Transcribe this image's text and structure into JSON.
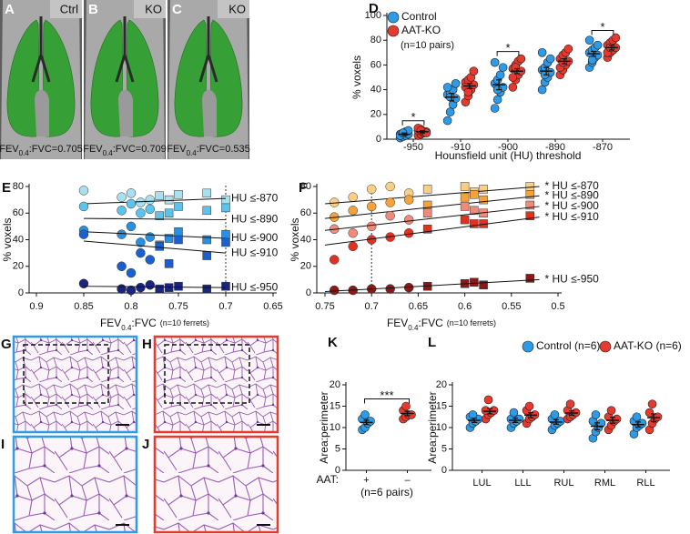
{
  "images": [
    {
      "panel": "A",
      "label": "Ctrl",
      "caption": [
        "FEV",
        "0.4",
        ":FVC=0.705"
      ]
    },
    {
      "panel": "B",
      "label": "KO",
      "caption": [
        "FEV",
        "0.4",
        ":FVC=0.709"
      ]
    },
    {
      "panel": "C",
      "label": "KO",
      "caption": [
        "FEV",
        "0.4",
        ":FVC=0.535"
      ]
    }
  ],
  "histology": [
    {
      "panel": "G"
    },
    {
      "panel": "H"
    },
    {
      "panel": "I"
    },
    {
      "panel": "J"
    }
  ],
  "chart_data": [
    {
      "type": "strip",
      "panel": "D",
      "ylabel": "% voxels",
      "xlabel": "Hounsfield unit (HU) threshold",
      "categories": [
        "-950",
        "-910",
        "-900",
        "-890",
        "-870"
      ],
      "ylim": [
        0,
        100
      ],
      "yticks": [
        0,
        20,
        40,
        60,
        80,
        100
      ],
      "legend_note": "(n=10 pairs)",
      "series": [
        {
          "name": "Control",
          "color": "#2e9be8",
          "values": [
            [
              1,
              2,
              3,
              4,
              4,
              5,
              6,
              7,
              3,
              5
            ],
            [
              15,
              22,
              28,
              33,
              36,
              38,
              40,
              45,
              42,
              34
            ],
            [
              25,
              32,
              38,
              42,
              45,
              48,
              52,
              58,
              62,
              40
            ],
            [
              40,
              46,
              50,
              54,
              56,
              58,
              62,
              65,
              70,
              52
            ],
            [
              58,
              62,
              66,
              68,
              70,
              72,
              74,
              76,
              80,
              64
            ]
          ],
          "means": [
            4,
            34,
            44,
            55,
            69
          ],
          "sem": [
            1,
            3,
            4,
            3,
            2
          ]
        },
        {
          "name": "AAT-KO",
          "color": "#e8392e",
          "values": [
            [
              3,
              4,
              5,
              6,
              7,
              8,
              6,
              5,
              9,
              7
            ],
            [
              30,
              35,
              40,
              44,
              46,
              48,
              50,
              55,
              42,
              38
            ],
            [
              42,
              48,
              52,
              55,
              57,
              60,
              63,
              65,
              50,
              58
            ],
            [
              52,
              56,
              60,
              63,
              65,
              68,
              70,
              73,
              58,
              62
            ],
            [
              66,
              70,
              72,
              74,
              76,
              78,
              80,
              82,
              70,
              74
            ]
          ],
          "means": [
            6,
            43,
            55,
            63,
            74
          ],
          "sem": [
            1,
            2,
            2,
            2,
            2
          ]
        }
      ],
      "significance": [
        {
          "label": "*",
          "span": [
            0,
            0
          ]
        },
        {
          "label": "*",
          "span": [
            2,
            2
          ]
        },
        {
          "label": "*",
          "span": [
            4,
            4
          ]
        }
      ]
    },
    {
      "type": "scatter",
      "panel": "E",
      "ylabel": "% voxels",
      "xlabel": {
        "main": "FEV",
        "sub": "0.4",
        "rest": ":FVC",
        "note": "(n=10 ferrets)"
      },
      "xlim": [
        0.9,
        0.65
      ],
      "xticks": [
        0.9,
        0.85,
        0.8,
        0.75,
        0.7,
        0.65
      ],
      "ylim": [
        0,
        80
      ],
      "yticks": [
        0,
        20,
        40,
        60,
        80
      ],
      "vline": 0.7,
      "x": [
        0.85,
        0.81,
        0.8,
        0.79,
        0.78,
        0.77,
        0.76,
        0.75,
        0.72,
        0.7
      ],
      "series": [
        {
          "name": "HU ≤-870",
          "color": "#a8e0f0",
          "values": [
            77,
            72,
            75,
            68,
            70,
            73,
            70,
            74,
            75,
            70
          ],
          "fit": {
            "x": [
              0.85,
              0.7
            ],
            "y": [
              67,
              71
            ]
          }
        },
        {
          "name": "HU ≤-890",
          "color": "#5cc4ec",
          "values": [
            65,
            62,
            67,
            60,
            63,
            58,
            60,
            65,
            62,
            64
          ],
          "fit": {
            "x": [
              0.85,
              0.7
            ],
            "y": [
              56,
              55
            ]
          }
        },
        {
          "name": "HU ≤-900",
          "color": "#2a8fe0",
          "values": [
            47,
            44,
            50,
            38,
            42,
            36,
            41,
            46,
            40,
            44
          ],
          "fit": {
            "x": [
              0.85,
              0.7
            ],
            "y": [
              46,
              41
            ]
          }
        },
        {
          "name": "HU ≤-910",
          "color": "#1a60d0",
          "values": [
            44,
            20,
            15,
            30,
            25,
            35,
            22,
            40,
            28,
            38
          ],
          "fit": {
            "x": [
              0.85,
              0.7
            ],
            "y": [
              39,
              30
            ]
          }
        },
        {
          "name": "HU ≤-950",
          "color": "#1a2580",
          "values": [
            7,
            3,
            2,
            4,
            6,
            3,
            4,
            5,
            3,
            5
          ],
          "fit": {
            "x": [
              0.85,
              0.7
            ],
            "y": [
              5,
              4
            ]
          }
        }
      ]
    },
    {
      "type": "scatter",
      "panel": "F",
      "ylabel": "% voxels",
      "xlabel": {
        "main": "FEV",
        "sub": "0.4",
        "rest": ":FVC",
        "note": "(n=10 ferrets)"
      },
      "xlim": [
        0.75,
        0.5
      ],
      "xticks": [
        0.75,
        0.7,
        0.65,
        0.6,
        0.55,
        0.5
      ],
      "ylim": [
        0,
        80
      ],
      "yticks": [
        0,
        20,
        40,
        60,
        80
      ],
      "vline": 0.7,
      "x": [
        0.74,
        0.72,
        0.7,
        0.68,
        0.66,
        0.64,
        0.6,
        0.59,
        0.58,
        0.53
      ],
      "series": [
        {
          "name": "* HU ≤-870",
          "color": "#f9cf88",
          "values": [
            68,
            72,
            78,
            80,
            75,
            78,
            80,
            76,
            78,
            80
          ],
          "fit": {
            "x": [
              0.75,
              0.52
            ],
            "y": [
              67,
              80
            ]
          }
        },
        {
          "name": "* HU ≤-890",
          "color": "#f5a23a",
          "values": [
            57,
            62,
            65,
            68,
            70,
            66,
            72,
            74,
            70,
            74
          ],
          "fit": {
            "x": [
              0.75,
              0.52
            ],
            "y": [
              56,
              73
            ]
          }
        },
        {
          "name": "* HU ≤-900",
          "color": "#f08a7a",
          "values": [
            48,
            45,
            50,
            58,
            55,
            60,
            65,
            62,
            60,
            66
          ],
          "fit": {
            "x": [
              0.75,
              0.52
            ],
            "y": [
              47,
              65
            ]
          }
        },
        {
          "name": "* HU ≤-910",
          "color": "#e2321f",
          "values": [
            25,
            35,
            40,
            42,
            45,
            48,
            55,
            52,
            52,
            58
          ],
          "fit": {
            "x": [
              0.75,
              0.52
            ],
            "y": [
              36,
              57
            ]
          }
        },
        {
          "name": "* HU ≤-950",
          "color": "#8a1a1a",
          "values": [
            2,
            2,
            3,
            3,
            4,
            5,
            7,
            8,
            6,
            11
          ],
          "fit": {
            "x": [
              0.75,
              0.52
            ],
            "y": [
              1,
              10
            ]
          }
        }
      ]
    },
    {
      "type": "strip",
      "panel": "K",
      "ylabel": "Area:perimeter",
      "xlabel": "AAT:",
      "note": "(n=6 pairs)",
      "categories": [
        "+",
        "–"
      ],
      "ylim": [
        0,
        20
      ],
      "yticks": [
        0,
        5,
        10,
        15,
        20
      ],
      "series": [
        {
          "colors": [
            "#2e9be8",
            "#e8392e"
          ],
          "values": [
            [
              9.5,
              10,
              11,
              11.5,
              12,
              13
            ],
            [
              12,
              12.5,
              13,
              13,
              14,
              15
            ]
          ],
          "means": [
            11.2,
            13.3
          ],
          "sem": [
            0.5,
            0.5
          ]
        }
      ],
      "significance": [
        {
          "label": "***",
          "span": [
            0,
            1
          ]
        }
      ]
    },
    {
      "type": "strip",
      "panel": "L",
      "ylabel": "Area:perimeter",
      "categories": [
        "LUL",
        "LLL",
        "RUL",
        "RML",
        "RLL"
      ],
      "ylim": [
        0,
        20
      ],
      "yticks": [
        0,
        5,
        10,
        15,
        20
      ],
      "series": [
        {
          "name": "Control (n=6)",
          "color": "#2e9be8",
          "values": [
            [
              10,
              11,
              11.5,
              12,
              12.5,
              13
            ],
            [
              10,
              11,
              11.5,
              12,
              12,
              13.5
            ],
            [
              9.5,
              10.5,
              11,
              11.5,
              12,
              13
            ],
            [
              7.5,
              9,
              10,
              11,
              11.5,
              13
            ],
            [
              8.5,
              10,
              10.5,
              11,
              11.5,
              12.5
            ]
          ],
          "means": [
            11.7,
            11.7,
            11.3,
            10.3,
            10.7
          ],
          "sem": [
            0.5,
            0.5,
            0.5,
            0.8,
            0.6
          ]
        },
        {
          "name": "AAT-KO (n=6)",
          "color": "#e8392e",
          "values": [
            [
              12,
              13,
              13.5,
              14,
              14,
              16.5
            ],
            [
              11,
              12,
              12.5,
              13,
              14,
              15
            ],
            [
              12,
              12.5,
              13,
              13.5,
              14,
              15.5
            ],
            [
              9.5,
              10.5,
              11.5,
              12,
              12.5,
              14
            ],
            [
              9.5,
              11,
              12,
              12.5,
              13.5,
              15.5
            ]
          ],
          "means": [
            13.8,
            12.9,
            13.4,
            11.7,
            12.3
          ],
          "sem": [
            0.6,
            0.6,
            0.5,
            0.7,
            0.9
          ]
        }
      ]
    }
  ]
}
